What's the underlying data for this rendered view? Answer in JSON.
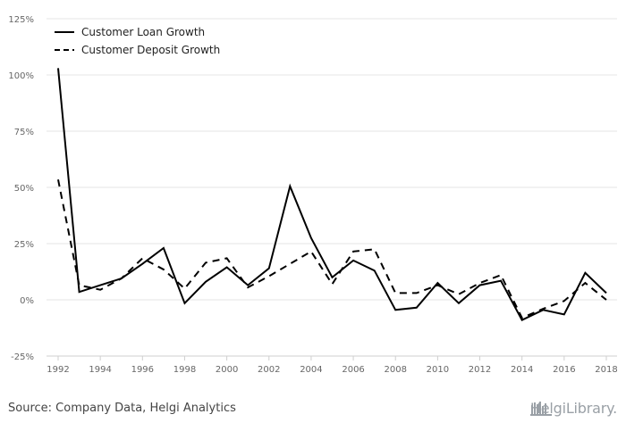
{
  "chart_data": {
    "type": "line",
    "title": "",
    "xlabel": "",
    "ylabel": "",
    "x": [
      1992,
      1993,
      1994,
      1995,
      1996,
      1997,
      1998,
      1999,
      2000,
      2001,
      2002,
      2003,
      2004,
      2005,
      2006,
      2007,
      2008,
      2009,
      2010,
      2011,
      2012,
      2013,
      2014,
      2015,
      2016,
      2017,
      2018
    ],
    "x_ticks": [
      "1992",
      "1994",
      "1996",
      "1998",
      "2000",
      "2002",
      "2004",
      "2006",
      "2008",
      "2010",
      "2012",
      "2014",
      "2016",
      "2018"
    ],
    "x_tick_values": [
      1992,
      1994,
      1996,
      1998,
      2000,
      2002,
      2004,
      2006,
      2008,
      2010,
      2012,
      2014,
      2016,
      2018
    ],
    "ylim": [
      -25,
      125
    ],
    "y_ticks": [
      "-25%",
      "0%",
      "25%",
      "50%",
      "75%",
      "100%",
      "125%"
    ],
    "y_tick_values": [
      -25,
      0,
      25,
      50,
      75,
      100,
      125
    ],
    "grid": true,
    "legend_position": "top-left",
    "series": [
      {
        "name": "Customer Loan Growth",
        "style": "solid",
        "color": "#000000",
        "values": [
          103,
          3.5,
          6.5,
          9.5,
          16,
          23,
          -1.5,
          8,
          14.5,
          6.5,
          14,
          50.5,
          27.5,
          10,
          17.5,
          13,
          -4.5,
          -3.5,
          7.5,
          -1.5,
          6.5,
          8.5,
          -9,
          -4.5,
          -6.5,
          12,
          3
        ]
      },
      {
        "name": "Customer Deposit Growth",
        "style": "dashed",
        "color": "#000000",
        "values": [
          53.5,
          6.5,
          4.5,
          9.5,
          18.5,
          13.5,
          5,
          16.5,
          18.5,
          5.5,
          10.5,
          16,
          21.5,
          7,
          21.5,
          22.5,
          3,
          3,
          6.5,
          2.5,
          7.5,
          11,
          -8,
          -4,
          -0.5,
          7.5,
          0
        ]
      }
    ]
  },
  "footer": {
    "source": "Source: Company Data, Helgi Analytics",
    "brand": "HelgiLibrary."
  },
  "colors": {
    "grid": "#e6e6e6",
    "tick_label": "#666666",
    "brand": "#9aa0a6"
  }
}
